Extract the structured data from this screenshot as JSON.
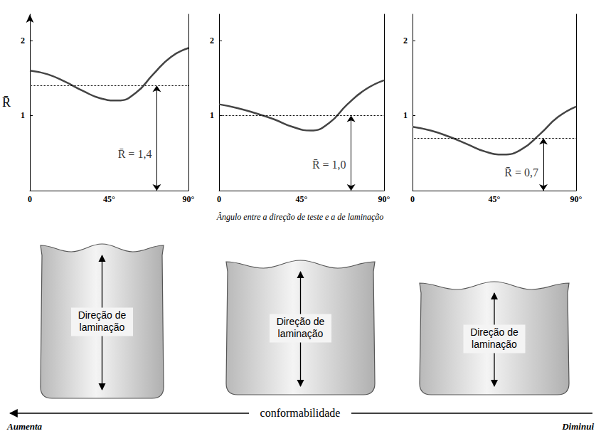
{
  "chart_data": [
    {
      "type": "line",
      "ylabel": "R̄",
      "x": [
        0,
        10,
        20,
        30,
        40,
        50,
        60,
        70,
        80,
        90
      ],
      "values": [
        1.6,
        1.55,
        1.45,
        1.33,
        1.23,
        1.2,
        1.3,
        1.55,
        1.78,
        1.9
      ],
      "color": "#444444",
      "line_style": "solid",
      "marker": "none",
      "grid": false,
      "xlim": [
        0,
        90
      ],
      "xticks": [
        0,
        {
          "value": 45,
          "label": "45°"
        },
        {
          "value": 90,
          "label": "90°"
        }
      ],
      "ylim": [
        0,
        2.35
      ],
      "yticks": [
        1,
        2
      ],
      "annotation": {
        "value": 1.4,
        "label": "R̄ = 1,4"
      }
    },
    {
      "type": "line",
      "x": [
        0,
        10,
        20,
        30,
        40,
        50,
        60,
        70,
        80,
        90
      ],
      "values": [
        1.15,
        1.1,
        1.03,
        0.95,
        0.85,
        0.8,
        0.9,
        1.15,
        1.35,
        1.47
      ],
      "color": "#444444",
      "line_style": "solid",
      "marker": "none",
      "grid": false,
      "xlim": [
        0,
        90
      ],
      "xticks": [
        0,
        {
          "value": 45,
          "label": "45°"
        },
        {
          "value": 90,
          "label": "90°"
        }
      ],
      "ylim": [
        0,
        2.35
      ],
      "yticks": [
        1,
        2
      ],
      "annotation": {
        "value": 1.0,
        "label": "R̄ = 1,0"
      }
    },
    {
      "type": "line",
      "x": [
        0,
        10,
        20,
        30,
        40,
        50,
        60,
        70,
        80,
        90
      ],
      "values": [
        0.85,
        0.8,
        0.72,
        0.62,
        0.52,
        0.48,
        0.55,
        0.75,
        0.98,
        1.12
      ],
      "color": "#444444",
      "line_style": "solid",
      "marker": "none",
      "grid": false,
      "xlim": [
        0,
        90
      ],
      "xticks": [
        0,
        {
          "value": 45,
          "label": "45°"
        },
        {
          "value": 90,
          "label": "90°"
        }
      ],
      "ylim": [
        0,
        2.35
      ],
      "yticks": [
        1,
        2
      ],
      "annotation": {
        "value": 0.7,
        "label": "R̄ = 0,7"
      }
    }
  ],
  "xlabel": "Ângulo entre a direção de teste e a de laminação",
  "cups": [
    {
      "label": "Direção de laminação"
    },
    {
      "label": "Direção de laminação"
    },
    {
      "label": "Direção de laminação"
    }
  ],
  "conformability": {
    "label": "conformabilidade",
    "left": "Aumenta",
    "right": "Diminui"
  }
}
